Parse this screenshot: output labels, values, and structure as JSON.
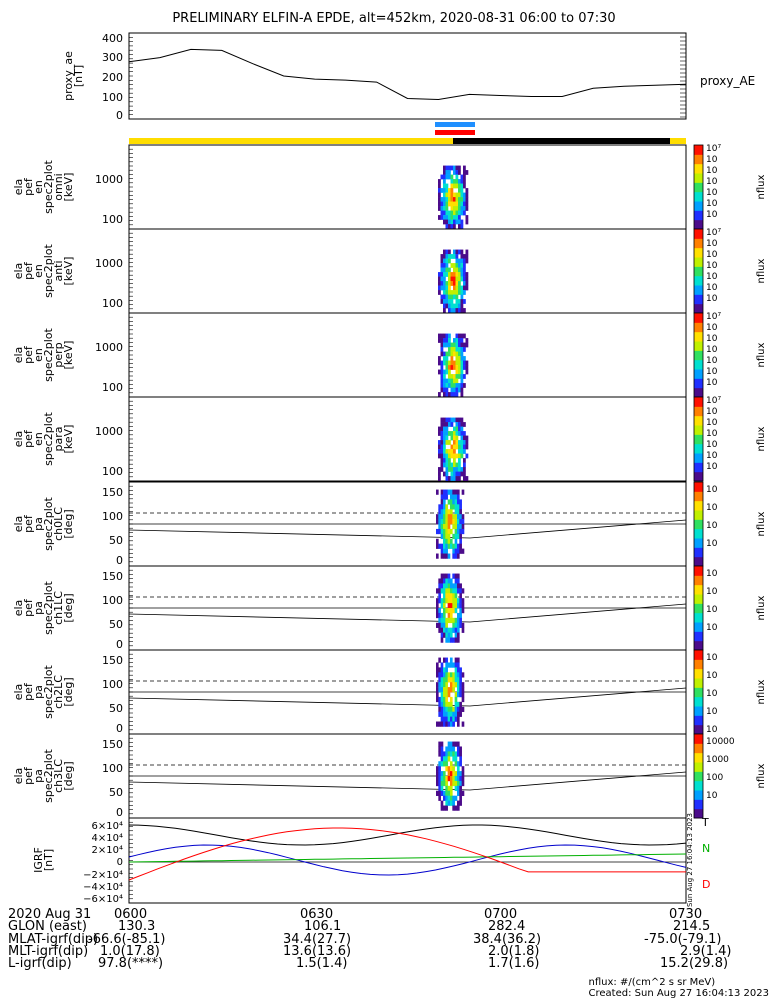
{
  "title": "PRELIMINARY ELFIN-A EPDE, alt=452km, 2020-08-31 06:00 to 07:30",
  "colors": {
    "yellow_bar": "#ffdd00",
    "blue_bar": "#1f8fff",
    "red_bar": "#ff0000",
    "black_bar": "#000000"
  },
  "panels": {
    "ae": {
      "ylabel": [
        "proxy_ae",
        "[nT]"
      ],
      "right_label": "proxy_AE",
      "ticks": [
        "400",
        "300",
        "200",
        "100",
        "0"
      ],
      "ylim": [
        0,
        420
      ]
    },
    "energy": [
      {
        "ylabel": [
          "ela",
          "pef",
          "en",
          "spec2plot",
          "omni",
          "[keV]"
        ],
        "ticks": [
          "1000",
          "100"
        ],
        "zlabel": "nflux",
        "zticks": [
          "10",
          "2",
          "3",
          "4",
          "5",
          "6",
          "7"
        ]
      },
      {
        "ylabel": [
          "ela",
          "pef",
          "en",
          "spec2plot",
          "anti",
          "[keV]"
        ],
        "ticks": [
          "1000",
          "100"
        ],
        "zlabel": "nflux",
        "zticks": [
          "10",
          "2",
          "3",
          "4",
          "5",
          "6",
          "7"
        ]
      },
      {
        "ylabel": [
          "ela",
          "pef",
          "en",
          "spec2plot",
          "perp",
          "[keV]"
        ],
        "ticks": [
          "1000",
          "100"
        ],
        "zlabel": "nflux",
        "zticks": [
          "10",
          "2",
          "3",
          "4",
          "5",
          "6",
          "7"
        ]
      },
      {
        "ylabel": [
          "ela",
          "pef",
          "en",
          "spec2plot",
          "para",
          "[keV]"
        ],
        "ticks": [
          "1000",
          "100"
        ],
        "zlabel": "nflux",
        "zticks": [
          "10",
          "2",
          "3",
          "4",
          "5",
          "6",
          "7"
        ]
      }
    ],
    "pitch": [
      {
        "ylabel": [
          "ela",
          "pef",
          "pa",
          "spec2plot",
          "ch0LC",
          "[deg]"
        ],
        "ticks": [
          "150",
          "100",
          "50",
          "0"
        ],
        "zlabel": "nflux",
        "zticks": [
          "10",
          "6",
          "5",
          "4"
        ]
      },
      {
        "ylabel": [
          "ela",
          "pef",
          "pa",
          "spec2plot",
          "ch1LC",
          "[deg]"
        ],
        "ticks": [
          "150",
          "100",
          "50",
          "0"
        ],
        "zlabel": "nflux",
        "zticks": [
          "10",
          "6",
          "5",
          "4"
        ]
      },
      {
        "ylabel": [
          "ela",
          "pef",
          "pa",
          "spec2plot",
          "ch2LC",
          "[deg]"
        ],
        "ticks": [
          "150",
          "100",
          "50",
          "0"
        ],
        "zlabel": "nflux",
        "zticks": [
          "10",
          "5",
          "4",
          "3",
          "2"
        ]
      },
      {
        "ylabel": [
          "ela",
          "pef",
          "pa",
          "spec2plot",
          "ch3LC",
          "[deg]"
        ],
        "ticks": [
          "150",
          "100",
          "50",
          "0"
        ],
        "zlabel": "nflux",
        "zticks": [
          "10000",
          "1000",
          "100",
          "10"
        ]
      }
    ],
    "igrf": {
      "ylabel": [
        "IGRF",
        "[nT]"
      ],
      "ticks": [
        "6×10⁴",
        "4×10⁴",
        "2×10⁴",
        "0",
        "−2×10⁴",
        "−4×10⁴",
        "−6×10⁴"
      ],
      "legend": [
        "T",
        "N",
        "D"
      ],
      "legend_colors": [
        "#000000",
        "#00b000",
        "#ff0000"
      ],
      "stamp": "Sun Aug 27 16:04:13 2023"
    }
  },
  "chart_data": {
    "type": "line",
    "title": "PRELIMINARY ELFIN-A EPDE, alt=452km, 2020-08-31 06:00 to 07:30",
    "x_minutes": [
      0,
      5,
      10,
      15,
      20,
      25,
      30,
      35,
      40,
      45,
      50,
      55,
      60,
      65,
      70,
      75,
      80,
      85,
      90
    ],
    "series": [
      {
        "name": "proxy_AE",
        "values": [
          280,
          300,
          340,
          335,
          270,
          210,
          195,
          190,
          180,
          100,
          95,
          120,
          115,
          110,
          110,
          150,
          160,
          165,
          170
        ]
      }
    ],
    "xlabels": [
      "0600",
      "0630",
      "0700",
      "0730"
    ],
    "ylim": [
      0,
      420
    ]
  },
  "footer": {
    "rows": [
      [
        "2020 Aug 31",
        "0600",
        "0630",
        "0700",
        "0730"
      ],
      [
        "GLON (east)",
        "130.3",
        "106.1",
        "282.4",
        "214.5"
      ],
      [
        "MLAT-igrf(dip)",
        "-66.6(-85.1)",
        "34.4(27.7)",
        "38.4(36.2)",
        "-75.0(-79.1)"
      ],
      [
        "MLT-igrf(dip)",
        "1.0(17.8)",
        "13.6(13.6)",
        "2.0(1.8)",
        "2.9(1.4)"
      ],
      [
        "L-igrf(dip)",
        "97.8(****)",
        "1.5(1.4)",
        "1.7(1.6)",
        "15.2(29.8)"
      ]
    ],
    "units_line": "nflux: #/(cm^2 s sr MeV)",
    "created_line": "Created: Sun Aug 27 16:04:13 2023"
  }
}
